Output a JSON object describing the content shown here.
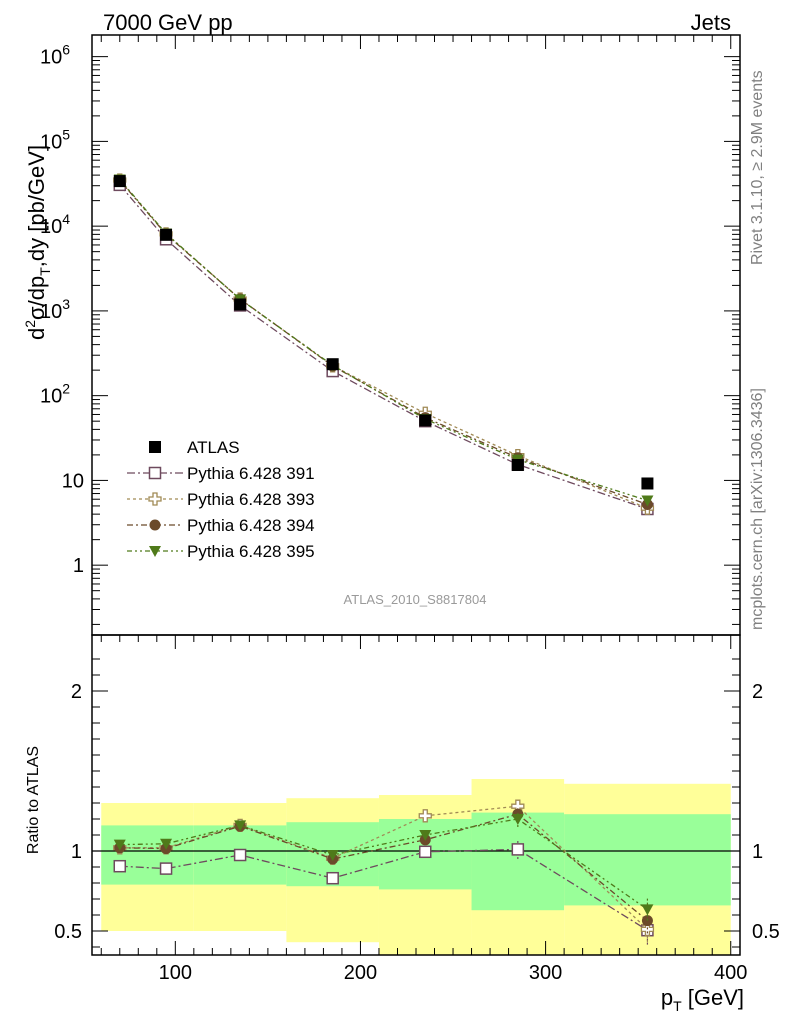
{
  "header": {
    "left": "7000 GeV pp",
    "right": "Jets"
  },
  "side_labels": {
    "rivet": "Rivet 3.1.10, ≥ 2.9M events",
    "mcplots": "mcplots.cern.ch [arXiv:1306.3436]"
  },
  "analysis_id": "ATLAS_2010_S8817804",
  "axes": {
    "ylabel_main_parts": [
      "d",
      "2",
      "σ/dp",
      "T",
      ",dy [pb/GeV]"
    ],
    "ylabel_ratio": "Ratio to ATLAS",
    "xlabel_parts": [
      "p",
      "T",
      " [GeV]"
    ]
  },
  "chart_data": [
    {
      "type": "scatter",
      "panel": "main",
      "yscale": "log",
      "xlim": [
        55,
        405
      ],
      "ylim": [
        0.15,
        1800000
      ],
      "x_ticks": [
        100,
        200,
        300,
        400
      ],
      "y_tick_values": [
        1,
        10,
        100,
        1000,
        10000,
        100000,
        1000000
      ],
      "y_tick_labels": [
        {
          "base": "1",
          "exp": ""
        },
        {
          "base": "10",
          "exp": ""
        },
        {
          "base": "10",
          "exp": "2"
        },
        {
          "base": "10",
          "exp": "3"
        },
        {
          "base": "10",
          "exp": "4"
        },
        {
          "base": "10",
          "exp": "5"
        },
        {
          "base": "10",
          "exp": "6"
        }
      ],
      "x": [
        70,
        95,
        135,
        185,
        235,
        285,
        355
      ],
      "series": [
        {
          "name": "ATLAS",
          "color": "#000000",
          "marker": "filled-square",
          "values": [
            34000,
            7900,
            1190,
            235,
            51,
            15.2,
            9.2
          ]
        },
        {
          "name": "Pythia 6.428 391",
          "color": "#6e4a5e",
          "marker": "open-square",
          "values": [
            30700,
            7000,
            1160,
            195,
            50,
            15.4,
            4.6
          ]
        },
        {
          "name": "Pythia 6.428 393",
          "color": "#a08a55",
          "marker": "open-cross",
          "values": [
            35000,
            8100,
            1380,
            225,
            62,
            19.6,
            4.7
          ]
        },
        {
          "name": "Pythia 6.428 394",
          "color": "#6b4a2a",
          "marker": "filled-circle",
          "values": [
            34700,
            8000,
            1380,
            224,
            55,
            18.5,
            5.2
          ]
        },
        {
          "name": "Pythia 6.428 395",
          "color": "#4f7a1a",
          "marker": "filled-triangle-down",
          "values": [
            35500,
            8200,
            1370,
            228,
            53,
            17.6,
            5.8
          ]
        }
      ]
    },
    {
      "type": "scatter",
      "panel": "ratio",
      "xlim": [
        55,
        405
      ],
      "ylim": [
        0.35,
        2.35
      ],
      "x_ticks": [
        100,
        200,
        300,
        400
      ],
      "y_ticks": [
        0.5,
        1,
        2
      ],
      "y_tick_labels": [
        "0.5",
        "1",
        "2"
      ],
      "bins": [
        {
          "x_lo": 60,
          "x_hi": 110,
          "green": [
            0.79,
            1.16
          ],
          "yellow": [
            0.5,
            1.3
          ]
        },
        {
          "x_lo": 110,
          "x_hi": 160,
          "green": [
            0.79,
            1.16
          ],
          "yellow": [
            0.5,
            1.3
          ]
        },
        {
          "x_lo": 160,
          "x_hi": 210,
          "green": [
            0.78,
            1.18
          ],
          "yellow": [
            0.43,
            1.33
          ]
        },
        {
          "x_lo": 210,
          "x_hi": 260,
          "green": [
            0.76,
            1.2
          ],
          "yellow": [
            0.35,
            1.35
          ]
        },
        {
          "x_lo": 260,
          "x_hi": 310,
          "green": [
            0.63,
            1.24
          ],
          "yellow": [
            0.35,
            1.45
          ]
        },
        {
          "x_lo": 310,
          "x_hi": 400,
          "green": [
            0.66,
            1.23
          ],
          "yellow": [
            0.35,
            1.42
          ]
        }
      ],
      "x": [
        70,
        95,
        135,
        185,
        235,
        285,
        355
      ],
      "series": [
        {
          "name": "Pythia 6.428 391",
          "color": "#6e4a5e",
          "marker": "open-square",
          "values": [
            0.905,
            0.89,
            0.975,
            0.83,
            0.995,
            1.01,
            0.505
          ],
          "errors": [
            0.01,
            0.01,
            0.01,
            0.01,
            0.03,
            0.06,
            0.09
          ]
        },
        {
          "name": "Pythia 6.428 393",
          "color": "#a08a55",
          "marker": "open-cross",
          "values": [
            1.02,
            1.02,
            1.16,
            0.955,
            1.22,
            1.28,
            0.51
          ],
          "errors": [
            0.01,
            0.01,
            0.01,
            0.01,
            0.03,
            0.05,
            0.08
          ]
        },
        {
          "name": "Pythia 6.428 394",
          "color": "#6b4a2a",
          "marker": "filled-circle",
          "values": [
            1.02,
            1.015,
            1.155,
            0.95,
            1.07,
            1.23,
            0.565
          ],
          "errors": [
            0.01,
            0.01,
            0.01,
            0.01,
            0.03,
            0.05,
            0.08
          ]
        },
        {
          "name": "Pythia 6.428 395",
          "color": "#4f7a1a",
          "marker": "filled-triangle-down",
          "values": [
            1.04,
            1.045,
            1.16,
            0.975,
            1.1,
            1.2,
            0.635
          ],
          "errors": [
            0.01,
            0.01,
            0.01,
            0.01,
            0.03,
            0.05,
            0.07
          ]
        }
      ]
    }
  ]
}
